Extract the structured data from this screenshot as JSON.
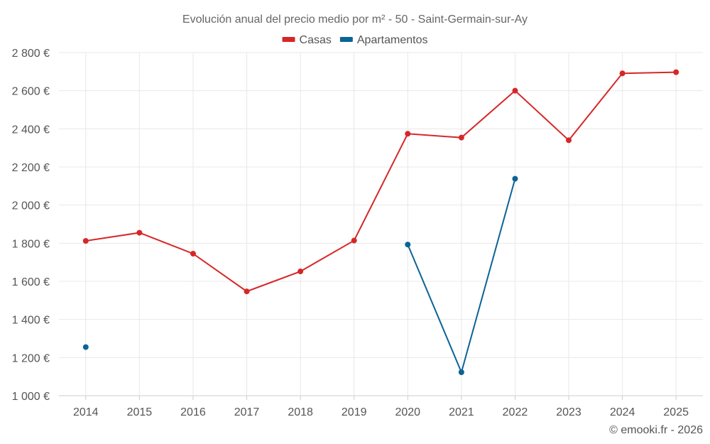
{
  "chart_data": {
    "type": "line",
    "title": "Evolución anual del precio medio por m² - 50 - Saint-Germain-sur-Ay",
    "categories": [
      "2014",
      "2015",
      "2016",
      "2017",
      "2018",
      "2019",
      "2020",
      "2021",
      "2022",
      "2023",
      "2024",
      "2025"
    ],
    "ylim": [
      1000,
      2800
    ],
    "yticks": [
      1000,
      1200,
      1400,
      1600,
      1800,
      2000,
      2200,
      2400,
      2600,
      2800
    ],
    "ytick_labels": [
      "1 000 €",
      "1 200 €",
      "1 400 €",
      "1 600 €",
      "1 800 €",
      "2 000 €",
      "2 200 €",
      "2 400 €",
      "2 600 €",
      "2 800 €"
    ],
    "grid": true,
    "legend_position": "top-center",
    "series": [
      {
        "name": "Casas",
        "color": "#d62728",
        "values": [
          1812,
          1855,
          1745,
          1547,
          1652,
          1814,
          2374,
          2354,
          2600,
          2340,
          2691,
          2697
        ]
      },
      {
        "name": "Apartamentos",
        "color": "#0b6496",
        "values": [
          1255,
          null,
          null,
          null,
          null,
          null,
          1793,
          1123,
          2138,
          null,
          null,
          null
        ]
      }
    ]
  },
  "credit": "© emooki.fr - 2026"
}
